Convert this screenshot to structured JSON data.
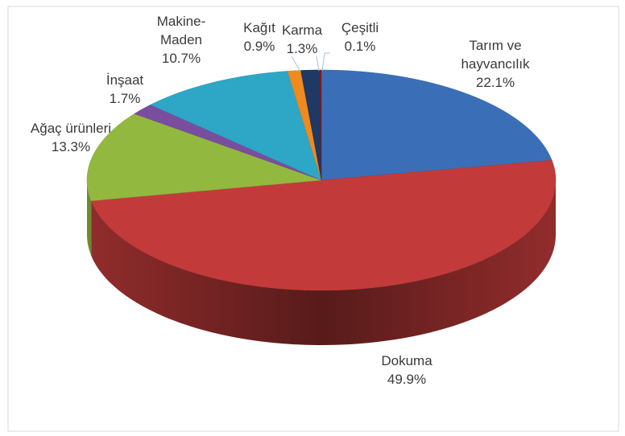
{
  "chart_data": {
    "type": "pie3d",
    "categories": [
      "Tarım ve hayvancılık",
      "Dokuma",
      "Ağaç ürünleri",
      "İnşaat",
      "Makine-Maden",
      "Kağıt",
      "Karma",
      "Çeşitli"
    ],
    "values": [
      22.1,
      49.9,
      13.3,
      1.7,
      10.7,
      0.9,
      1.3,
      0.1
    ],
    "value_labels": [
      "22.1%",
      "49.9%",
      "13.3%",
      "1.7%",
      "10.7%",
      "0.9%",
      "1.3%",
      "0.1%"
    ],
    "colors": [
      "#3a6fb8",
      "#c23b3a",
      "#93b83f",
      "#7a4e9e",
      "#2ea6c6",
      "#f08a1e",
      "#1f3864",
      "#8b1a1a"
    ]
  }
}
